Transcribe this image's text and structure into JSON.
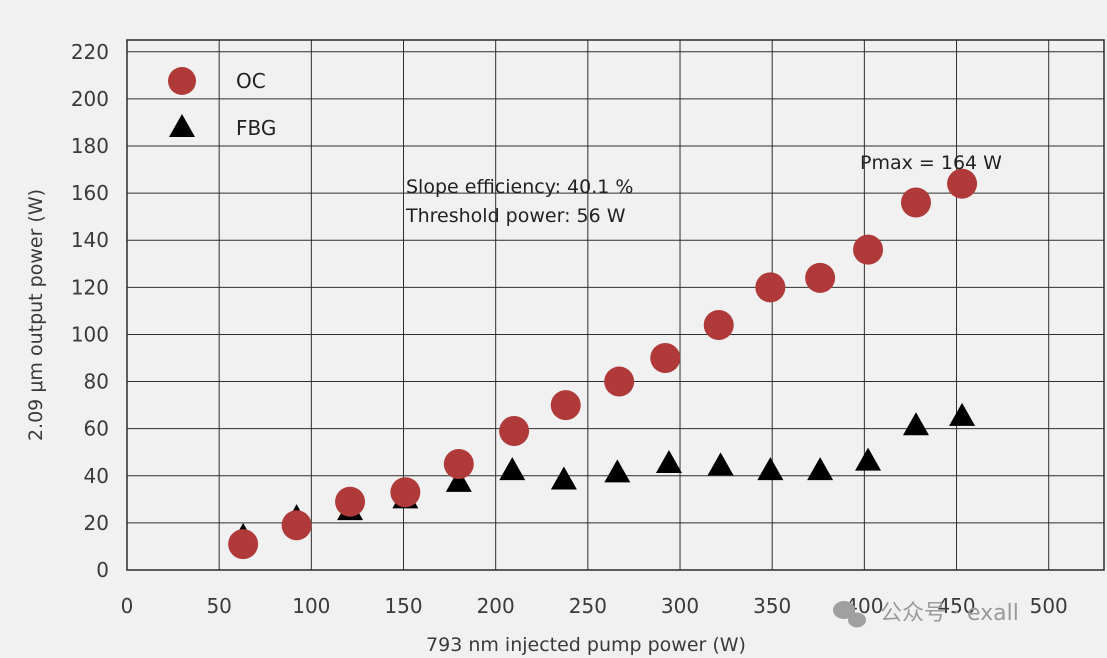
{
  "chart_data": {
    "type": "scatter",
    "xlabel": "793 nm injected pump power (W)",
    "ylabel": "2.09 μm output power (W)",
    "xlim": [
      0,
      530
    ],
    "ylim": [
      0,
      225
    ],
    "xticks": [
      0,
      50,
      100,
      150,
      200,
      250,
      300,
      350,
      400,
      450,
      500
    ],
    "yticks": [
      0,
      20,
      40,
      60,
      80,
      100,
      120,
      140,
      160,
      180,
      200,
      220
    ],
    "grid": true,
    "legend_position": "top-left",
    "series": [
      {
        "name": "OC",
        "marker": "circle",
        "color": "#b03a3a",
        "x": [
          63,
          92,
          121,
          151,
          180,
          210,
          238,
          267,
          292,
          321,
          349,
          376,
          402,
          428,
          453
        ],
        "y": [
          11,
          19,
          29,
          33,
          45,
          59,
          70,
          80,
          90,
          104,
          120,
          124,
          136,
          156,
          164
        ]
      },
      {
        "name": "FBG",
        "marker": "triangle",
        "color": "#000000",
        "x": [
          63,
          92,
          121,
          151,
          180,
          209,
          237,
          266,
          294,
          322,
          349,
          376,
          402,
          428,
          453
        ],
        "y": [
          14,
          22,
          25,
          30,
          37,
          42,
          38,
          41,
          45,
          44,
          42,
          42,
          46,
          61,
          65
        ]
      }
    ],
    "annotations": {
      "slope": "Slope efficiency: 40.1 %",
      "threshold": "Threshold power: 56 W",
      "pmax": "Pmax  = 164 W"
    }
  },
  "watermark": "公众号 · exall"
}
